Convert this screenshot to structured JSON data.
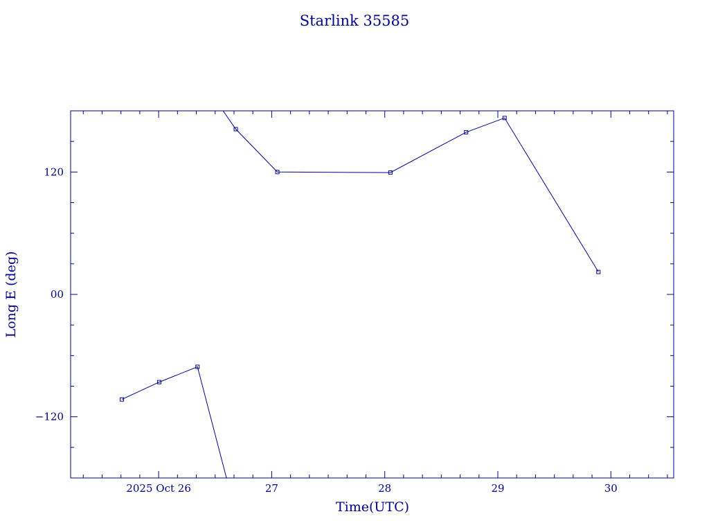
{
  "chart_data": {
    "type": "line",
    "title": "Starlink 35585",
    "xlabel": "Time(UTC)",
    "ylabel": "Long E (deg)",
    "color": "#00008b",
    "x_ticks": [
      {
        "value": "2025-10-26",
        "label": "2025 Oct 26"
      },
      {
        "value": "2025-10-27",
        "label": "27"
      },
      {
        "value": "2025-10-28",
        "label": "28"
      },
      {
        "value": "2025-10-29",
        "label": "29"
      },
      {
        "value": "2025-10-30",
        "label": "30"
      }
    ],
    "y_ticks": [
      {
        "value": -120,
        "label": "−120"
      },
      {
        "value": 0,
        "label": "00"
      },
      {
        "value": 120,
        "label": "120"
      }
    ],
    "xlim": [
      "2025-10-25 05:19",
      "2025-10-30 13:20"
    ],
    "ylim": [
      -180,
      180
    ],
    "grid": false,
    "series": [
      {
        "segments": [
          {
            "points": [
              {
                "x": "2025-10-25 16:12",
                "y": -103
              },
              {
                "x": "2025-10-26 00:08",
                "y": -86
              },
              {
                "x": "2025-10-26 08:15",
                "y": -71
              },
              {
                "x": "2025-10-26 14:24",
                "y": -180
              }
            ]
          },
          {
            "points": [
              {
                "x": "2025-10-26 13:41",
                "y": 180
              },
              {
                "x": "2025-10-26 16:23",
                "y": 162
              },
              {
                "x": "2025-10-27 01:12",
                "y": 120
              },
              {
                "x": "2025-10-28 01:12",
                "y": 119.5
              },
              {
                "x": "2025-10-28 17:16",
                "y": 159
              },
              {
                "x": "2025-10-29 01:26",
                "y": 173
              },
              {
                "x": "2025-10-29 21:21",
                "y": 22
              }
            ]
          }
        ],
        "markers": [
          {
            "x": "2025-10-25 16:12",
            "y": -103
          },
          {
            "x": "2025-10-26 00:08",
            "y": -86
          },
          {
            "x": "2025-10-26 08:15",
            "y": -71
          },
          {
            "x": "2025-10-26 16:23",
            "y": 162
          },
          {
            "x": "2025-10-27 01:12",
            "y": 120
          },
          {
            "x": "2025-10-28 01:12",
            "y": 119.5
          },
          {
            "x": "2025-10-28 17:16",
            "y": 159
          },
          {
            "x": "2025-10-29 01:26",
            "y": 173
          },
          {
            "x": "2025-10-29 21:21",
            "y": 22
          }
        ]
      }
    ]
  }
}
